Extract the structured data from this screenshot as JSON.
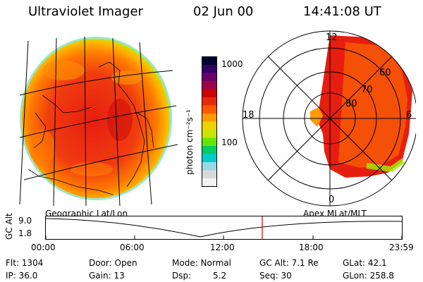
{
  "header": {
    "title": "Ultraviolet Imager",
    "date": "02 Jun 00",
    "time": "14:41:08 UT"
  },
  "colorbar": {
    "unit_label": "photon cm⁻²s⁻¹",
    "ticks": [
      "1000",
      "100"
    ],
    "colors": [
      "#000033",
      "#330066",
      "#6a006a",
      "#a0004a",
      "#cc0000",
      "#e62a0a",
      "#ff5a00",
      "#ff9a00",
      "#f0d200",
      "#c8e600",
      "#66e600",
      "#00cc66",
      "#00cccc",
      "#9ad8e8",
      "#d8d8d8",
      "#f4f4f4"
    ]
  },
  "panels": {
    "left_label": "Geographic Lat/Lon",
    "right_label": "Apex MLat/MLT"
  },
  "polar": {
    "mlt_labels": [
      "12",
      "18",
      "6",
      "0"
    ],
    "lat_labels": [
      "60",
      "70",
      "80"
    ]
  },
  "timeline": {
    "ylabel": "GC Alt",
    "yticks": [
      "9.0",
      "1.8"
    ],
    "xticks": [
      "00:00",
      "06:00",
      "12:00",
      "18:00",
      "23:59"
    ],
    "marker_color": "#cc0000"
  },
  "footer": {
    "flt": "Flt: 1304",
    "ip": "IP: 36.0",
    "door": "Door: Open",
    "gain": "Gain: 13",
    "mode": "Mode: Normal",
    "dsp_label": "Dsp:",
    "dsp_value": "5.2",
    "gc_alt": "GC Alt: 7.1 Re",
    "seq": "Seq: 30",
    "glat": "GLat: 42.1",
    "glon": "GLon: 258.8"
  }
}
